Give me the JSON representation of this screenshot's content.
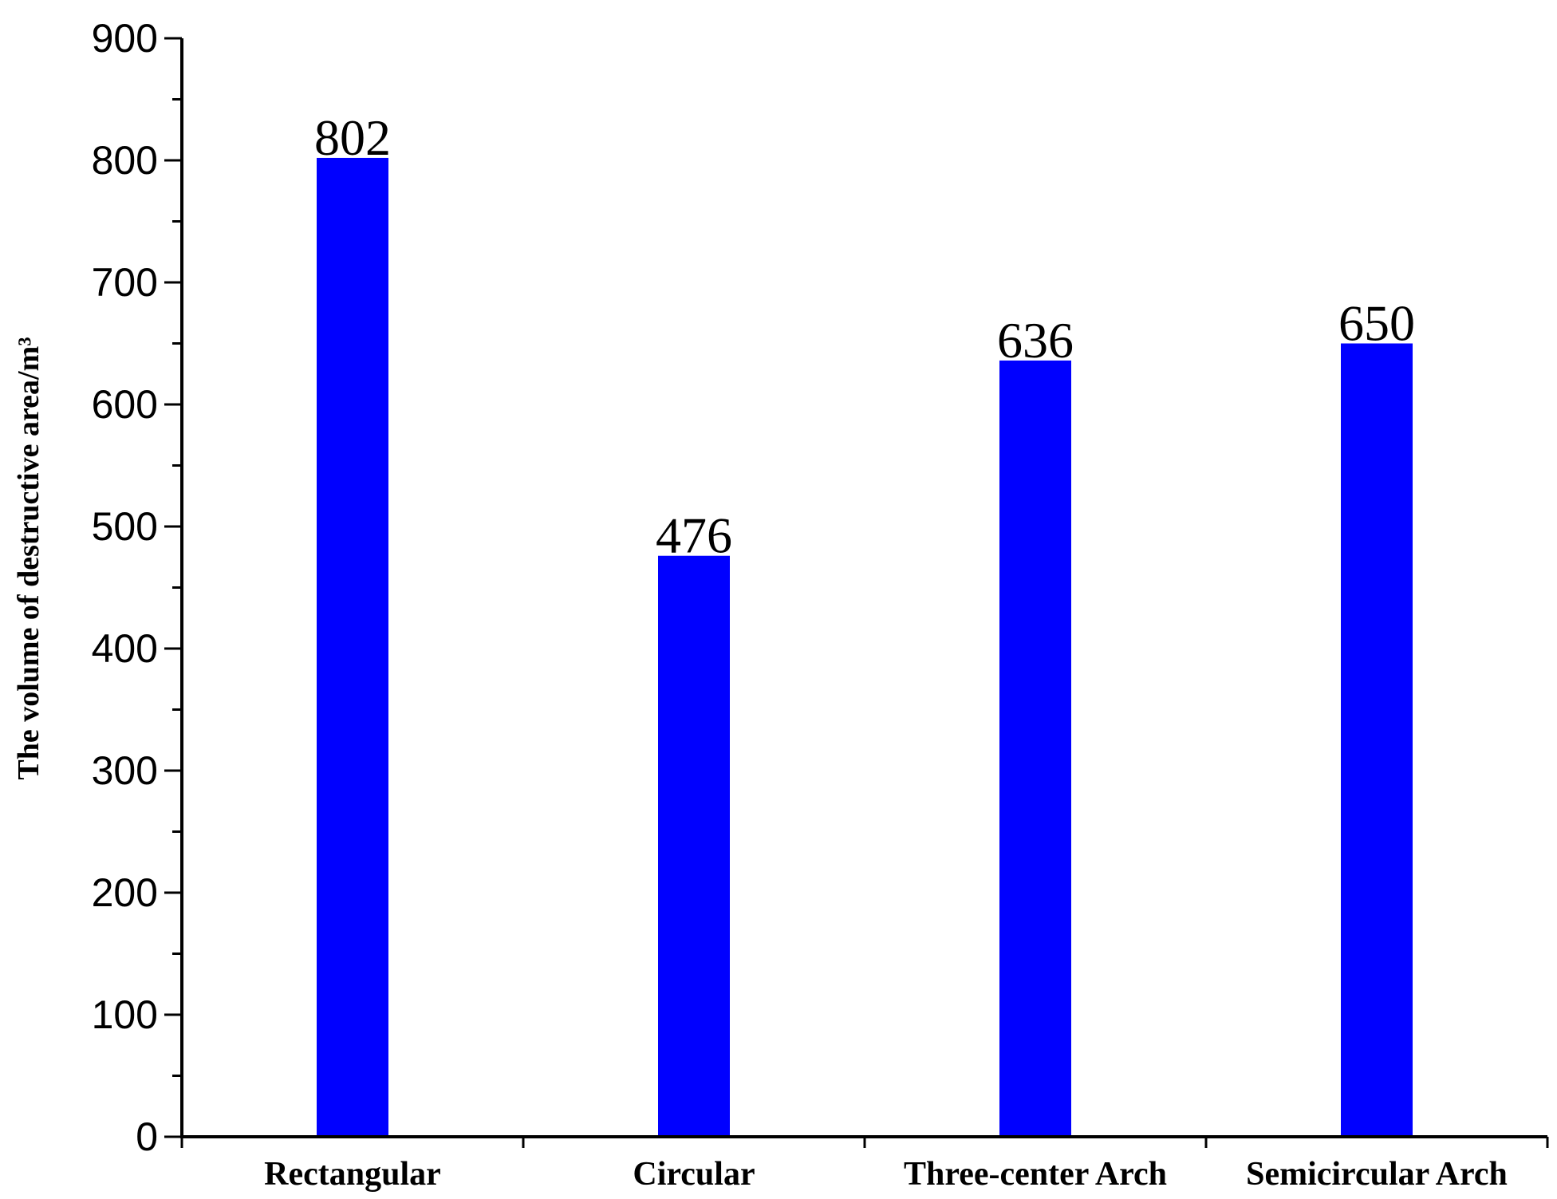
{
  "chart_data": {
    "type": "bar",
    "categories": [
      "Rectangular",
      "Circular",
      "Three-center Arch",
      "Semicircular Arch"
    ],
    "values": [
      802,
      476,
      636,
      650
    ],
    "data_labels": [
      "802",
      "476",
      "636",
      "650"
    ],
    "title": "",
    "xlabel": "",
    "ylabel": "The volume of destructive area/m³",
    "ylim": [
      0,
      900
    ],
    "yticks": [
      0,
      100,
      200,
      300,
      400,
      500,
      600,
      700,
      800,
      900
    ],
    "ytick_labels": [
      "0",
      "100",
      "200",
      "300",
      "400",
      "500",
      "600",
      "700",
      "800",
      "900"
    ],
    "bar_color": "#0000ff",
    "grid": false,
    "legend": "none"
  }
}
